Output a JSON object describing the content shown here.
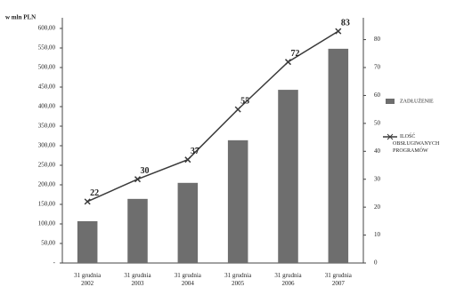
{
  "chart_data": {
    "type": "bar_line",
    "y_axis_label": "w mln PLN",
    "categories": [
      "31 grudnia 2002",
      "31 grudnia 2003",
      "31 grudnia 2004",
      "31 grudnia 2005",
      "31 grudnia 2006",
      "31 grudnia 2007"
    ],
    "series": [
      {
        "name": "ZADŁUŻENIE",
        "type": "bar",
        "color": "#6e6e6e",
        "values": [
          107,
          164,
          205,
          314,
          443,
          548
        ]
      },
      {
        "name": "ILOŚĆ OBSŁUGIWANYCH PROGRAMÓW",
        "type": "line",
        "axis": "y2",
        "color": "#3a3a3a",
        "values": [
          22,
          30,
          37,
          55,
          72,
          83
        ],
        "value_labels": [
          "22",
          "30",
          "37",
          "55",
          "72",
          "83"
        ]
      }
    ],
    "ylim": [
      0,
      600
    ],
    "yticks": [
      {
        "value": 0,
        "label": "-"
      },
      {
        "value": 50,
        "label": "50,00"
      },
      {
        "value": 100,
        "label": "100,00"
      },
      {
        "value": 150,
        "label": "150,00"
      },
      {
        "value": 200,
        "label": "200,00"
      },
      {
        "value": 250,
        "label": "250,00"
      },
      {
        "value": 300,
        "label": "300,00"
      },
      {
        "value": 350,
        "label": "350,00"
      },
      {
        "value": 400,
        "label": "400,00"
      },
      {
        "value": 450,
        "label": "450,00"
      },
      {
        "value": 500,
        "label": "500,00"
      },
      {
        "value": 550,
        "label": "550,00"
      },
      {
        "value": 600,
        "label": "600,00"
      }
    ],
    "y2lim": [
      0,
      84
    ],
    "y2ticks": [
      0,
      10,
      20,
      30,
      40,
      50,
      60,
      70,
      80
    ],
    "legend": "right"
  }
}
